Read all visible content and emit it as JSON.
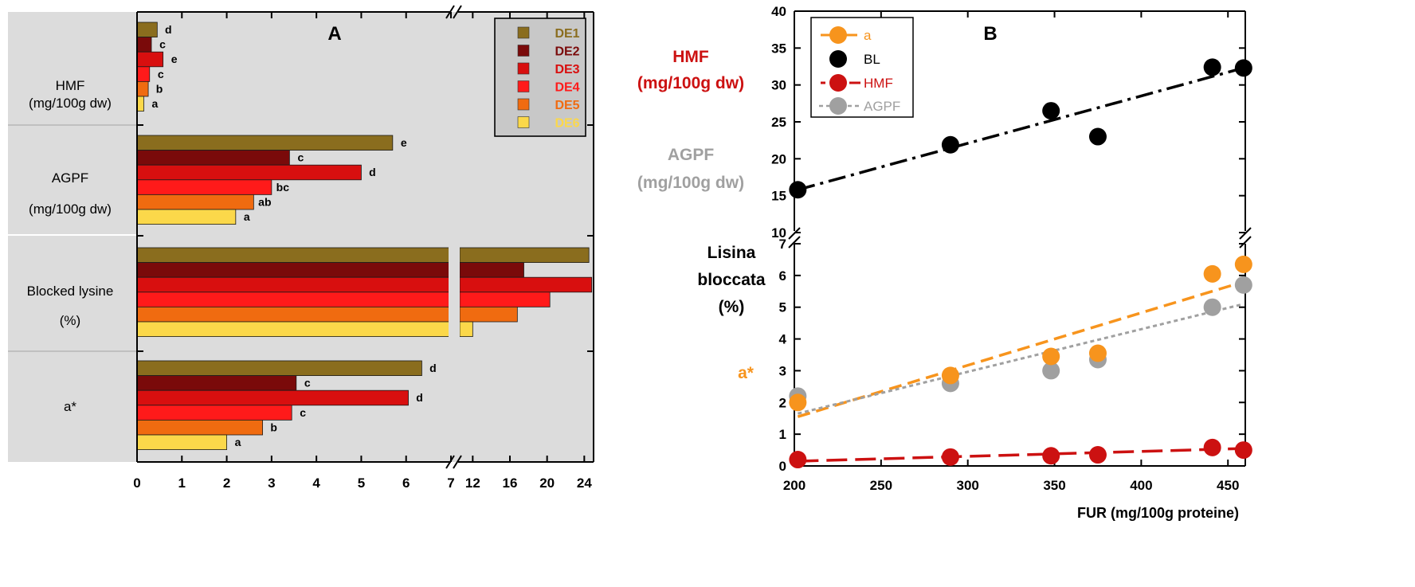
{
  "colors": {
    "DE1": "#8a6d1e",
    "DE2": "#7a0a0a",
    "DE3": "#d80f0f",
    "DE4": "#ff1a1a",
    "DE5": "#f06b10",
    "DE6": "#fbd84a",
    "panel_bg": "#dcdcdc",
    "axis": "#000000",
    "orange": "#f7941d",
    "black": "#000000",
    "red": "#cc1111",
    "gray": "#a0a0a0"
  },
  "chart_data": [
    {
      "type": "bar",
      "panel_label": "A",
      "orientation": "horizontal",
      "legend": {
        "placement": "top-right",
        "entries": [
          "DE1",
          "DE2",
          "DE3",
          "DE4",
          "DE5",
          "DE6"
        ]
      },
      "groups": [
        {
          "label_lines": [
            "HMF",
            "(mg/100g dw)"
          ],
          "bars": [
            {
              "series": "DE1",
              "value": 0.45,
              "letter": "d"
            },
            {
              "series": "DE2",
              "value": 0.32,
              "letter": "c"
            },
            {
              "series": "DE3",
              "value": 0.58,
              "letter": "e"
            },
            {
              "series": "DE4",
              "value": 0.28,
              "letter": "c"
            },
            {
              "series": "DE5",
              "value": 0.25,
              "letter": "b"
            },
            {
              "series": "DE6",
              "value": 0.15,
              "letter": "a"
            }
          ]
        },
        {
          "label_lines": [
            "AGPF",
            "(mg/100g dw)"
          ],
          "bars": [
            {
              "series": "DE1",
              "value": 5.7,
              "letter": "e"
            },
            {
              "series": "DE2",
              "value": 3.4,
              "letter": "c"
            },
            {
              "series": "DE3",
              "value": 5.0,
              "letter": "d"
            },
            {
              "series": "DE4",
              "value": 3.0,
              "letter": "bc"
            },
            {
              "series": "DE5",
              "value": 2.6,
              "letter": "ab"
            },
            {
              "series": "DE6",
              "value": 2.2,
              "letter": "a"
            }
          ]
        },
        {
          "label_lines": [
            "Blocked lysine",
            "(%)"
          ],
          "bars": [
            {
              "series": "DE1",
              "value": 24.5,
              "letter": ""
            },
            {
              "series": "DE2",
              "value": 17.5,
              "letter": ""
            },
            {
              "series": "DE3",
              "value": 24.8,
              "letter": ""
            },
            {
              "series": "DE4",
              "value": 20.3,
              "letter": ""
            },
            {
              "series": "DE5",
              "value": 16.8,
              "letter": ""
            },
            {
              "series": "DE6",
              "value": 12.0,
              "letter": ""
            }
          ]
        },
        {
          "label_lines": [
            "a*"
          ],
          "bars": [
            {
              "series": "DE1",
              "value": 6.35,
              "letter": "d"
            },
            {
              "series": "DE2",
              "value": 3.55,
              "letter": "c"
            },
            {
              "series": "DE3",
              "value": 6.05,
              "letter": "d"
            },
            {
              "series": "DE4",
              "value": 3.45,
              "letter": "c"
            },
            {
              "series": "DE5",
              "value": 2.8,
              "letter": "b"
            },
            {
              "series": "DE6",
              "value": 2.0,
              "letter": "a"
            }
          ]
        }
      ],
      "x_ticks_lower": [
        "0",
        "1",
        "2",
        "3",
        "4",
        "5",
        "6",
        "7"
      ],
      "x_ticks_upper": [
        "12",
        "16",
        "20",
        "24"
      ],
      "xlim_lower": [
        0,
        7
      ],
      "xlim_upper": [
        11,
        25
      ],
      "axis_break": true
    },
    {
      "type": "scatter",
      "panel_label": "B",
      "xlabel": "FUR (mg/100g proteine)",
      "xlim": [
        200,
        460
      ],
      "x_ticks": [
        "200",
        "250",
        "300",
        "350",
        "400",
        "450"
      ],
      "legend": {
        "placement": "top-left",
        "entries": [
          "a",
          "BL",
          "HMF",
          "AGPF"
        ]
      },
      "upper_axis": {
        "ylim": [
          10,
          40
        ],
        "y_ticks": [
          "10",
          "15",
          "20",
          "25",
          "30",
          "35",
          "40"
        ],
        "labels": [
          {
            "lines": [
              "HMF",
              "(mg/100g dw)"
            ],
            "color": "#cc1111"
          },
          {
            "lines": [
              "AGPF",
              "(mg/100g dw)"
            ],
            "color": "#a0a0a0"
          }
        ]
      },
      "lower_axis": {
        "ylim": [
          0,
          7
        ],
        "y_ticks": [
          "0",
          "1",
          "2",
          "3",
          "4",
          "5",
          "6",
          "7"
        ],
        "labels": [
          {
            "lines": [
              "Lisina",
              "bloccata",
              "(%)"
            ],
            "color": "#000000"
          },
          {
            "lines": [
              "a*"
            ],
            "color": "#f7941d"
          }
        ]
      },
      "x": [
        202,
        290,
        348,
        375,
        441,
        459
      ],
      "series": [
        {
          "name": "a",
          "axis": "lower",
          "y": [
            2.0,
            2.85,
            3.45,
            3.55,
            6.05,
            6.35
          ],
          "color": "#f7941d",
          "trend": [
            [
              202,
              1.55
            ],
            [
              459,
              5.8
            ]
          ],
          "dash": "16 8"
        },
        {
          "name": "BL",
          "axis": "upper",
          "y": [
            15.8,
            21.9,
            26.5,
            23.0,
            32.4,
            32.3
          ],
          "color": "#000000",
          "trend": [
            [
              202,
              15.8
            ],
            [
              459,
              32.3
            ]
          ],
          "dash": "22 7 4 7"
        },
        {
          "name": "HMF",
          "axis": "lower",
          "y": [
            0.2,
            0.28,
            0.32,
            0.35,
            0.58,
            0.5
          ],
          "color": "#cc1111",
          "trend": [
            [
              202,
              0.15
            ],
            [
              459,
              0.55
            ]
          ],
          "dash": "26 10"
        },
        {
          "name": "AGPF",
          "axis": "lower",
          "y": [
            2.2,
            2.6,
            3.0,
            3.35,
            5.0,
            5.7
          ],
          "color": "#a0a0a0",
          "trend": [
            [
              202,
              1.65
            ],
            [
              459,
              5.1
            ]
          ],
          "dash": "5 4"
        }
      ]
    }
  ]
}
